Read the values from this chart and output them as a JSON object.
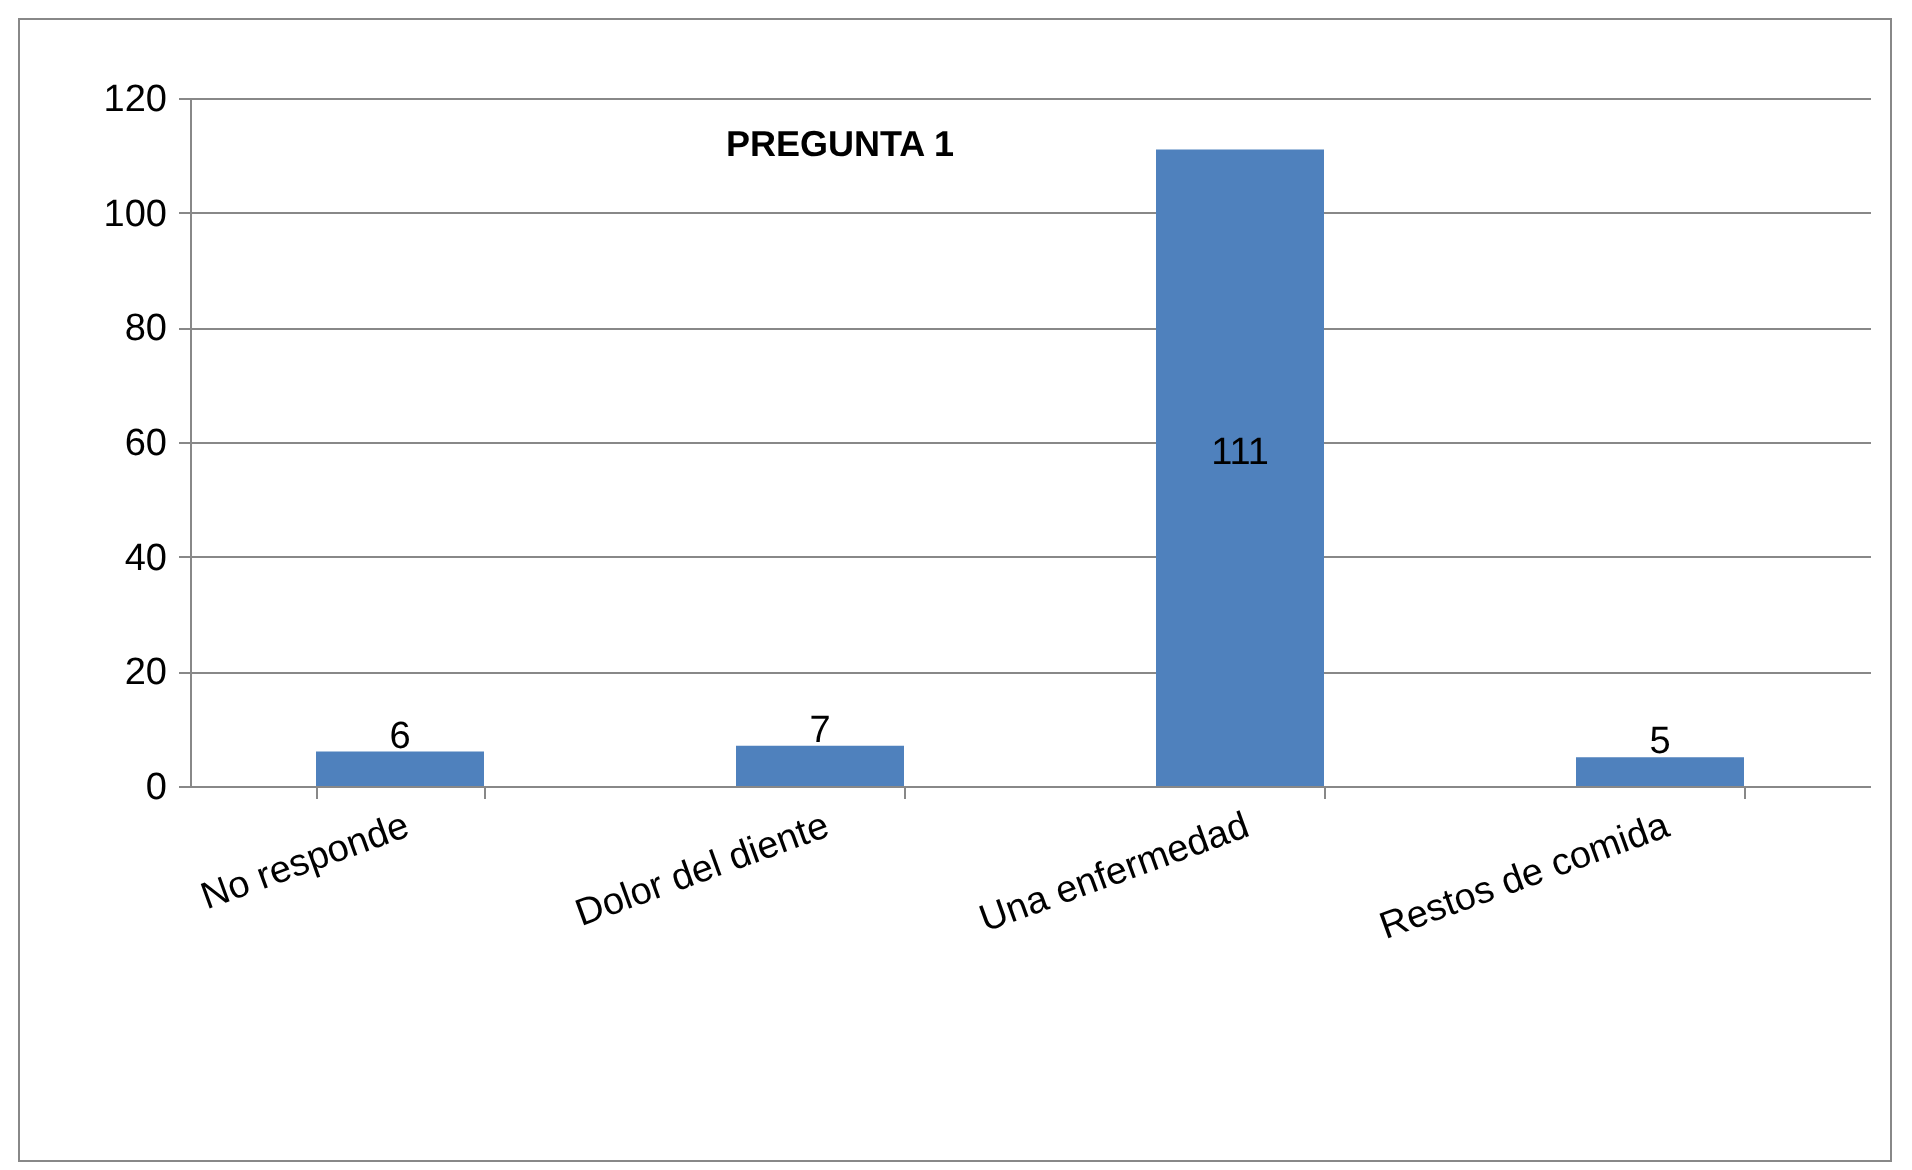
{
  "chart_data": {
    "type": "bar",
    "title": "PREGUNTA 1",
    "categories": [
      "No responde",
      "Dolor del diente",
      "Una enfermedad",
      "Restos de comida"
    ],
    "values": [
      6,
      7,
      111,
      5
    ],
    "color": "#4f81bd",
    "ylim": [
      0,
      120
    ],
    "yticks": [
      0,
      20,
      40,
      60,
      80,
      100,
      120
    ],
    "grid": "y",
    "data_labels": true
  }
}
